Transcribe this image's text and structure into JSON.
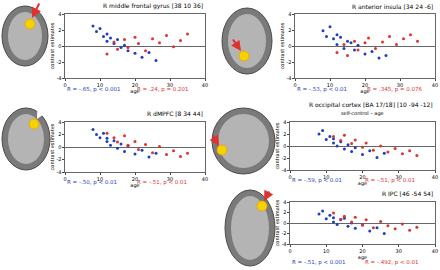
{
  "chart_data": [
    {
      "type": "scatter",
      "title": "R middle frontal gyrus [38 10 36]",
      "xlabel": "age",
      "ylabel": "contrast estimates",
      "xlim": [
        0,
        40
      ],
      "xticks": [
        0,
        10,
        20,
        30,
        40
      ],
      "ylim": [
        -4,
        4
      ],
      "yticks": [
        -4,
        -2,
        0,
        2,
        4
      ],
      "series": [
        {
          "color": "#1f3fbf",
          "x": [
            8,
            9,
            10,
            11,
            12,
            12,
            13,
            14,
            15,
            16,
            17,
            18,
            20,
            22,
            24,
            26
          ],
          "values": [
            2.5,
            1.8,
            2.2,
            1.2,
            1.5,
            0.6,
            1.0,
            0.3,
            0.8,
            -0.2,
            0.1,
            -0.6,
            -0.9,
            -1.4,
            -0.8,
            -1.8
          ]
        },
        {
          "color": "#e0312f",
          "x": [
            12,
            14,
            15,
            17,
            18,
            20,
            21,
            23,
            25,
            27,
            29,
            31,
            33,
            35
          ],
          "values": [
            -1.0,
            0.5,
            -0.4,
            0.8,
            -0.2,
            1.1,
            0.3,
            -0.6,
            0.9,
            0.4,
            1.3,
            -0.1,
            0.7,
            1.5
          ]
        }
      ],
      "annotations": [
        {
          "text": "R = -.65, p < 0.001",
          "color": "#1f3fbf"
        },
        {
          "text": "R = .24, p = 0.201",
          "color": "#e0312f"
        }
      ]
    },
    {
      "type": "scatter",
      "title": "R anterior insula [34 24 -6]",
      "xlabel": "age",
      "ylabel": "contrast estimates",
      "xlim": [
        0,
        40
      ],
      "xticks": [
        0,
        10,
        20,
        30,
        40
      ],
      "ylim": [
        -4,
        4
      ],
      "yticks": [
        -4,
        -2,
        0,
        2,
        4
      ],
      "series": [
        {
          "color": "#1f3fbf",
          "x": [
            8,
            9,
            10,
            11,
            12,
            12,
            13,
            14,
            15,
            16,
            17,
            18,
            20,
            22,
            24,
            26
          ],
          "values": [
            1.9,
            1.2,
            2.4,
            0.9,
            1.4,
            0.2,
            1.1,
            -0.3,
            0.6,
            0.4,
            -0.5,
            0.1,
            -1.0,
            -0.7,
            -1.5,
            -1.2
          ]
        },
        {
          "color": "#e0312f",
          "x": [
            12,
            14,
            15,
            17,
            18,
            20,
            21,
            23,
            25,
            27,
            29,
            31,
            33,
            35
          ],
          "values": [
            -0.8,
            0.2,
            -1.2,
            0.6,
            -0.5,
            0.4,
            1.0,
            -0.3,
            0.5,
            1.2,
            0.2,
            0.9,
            1.4,
            0.6
          ]
        }
      ],
      "annotations": [
        {
          "text": "R = -.53, p < 0.01",
          "color": "#1f3fbf"
        },
        {
          "text": "R = .345, p = 0.076",
          "color": "#e0312f"
        }
      ]
    },
    {
      "type": "scatter",
      "title": "R dMPFC [8 34 44]",
      "xlabel": "age",
      "ylabel": "contrast estimates",
      "xlim": [
        0,
        40
      ],
      "xticks": [
        0,
        10,
        20,
        30,
        40
      ],
      "ylim": [
        -4,
        4
      ],
      "yticks": [
        -4,
        -2,
        0,
        2,
        4
      ],
      "series": [
        {
          "color": "#1f3fbf",
          "x": [
            8,
            9,
            10,
            11,
            12,
            12,
            13,
            14,
            15,
            16,
            17,
            18,
            20,
            22,
            24,
            26
          ],
          "values": [
            2.8,
            2.0,
            1.5,
            2.2,
            0.9,
            1.4,
            0.3,
            1.0,
            -0.2,
            0.5,
            -0.7,
            0.2,
            -1.1,
            -0.5,
            -1.6,
            -1.0
          ]
        },
        {
          "color": "#e0312f",
          "x": [
            12,
            14,
            15,
            17,
            18,
            20,
            21,
            23,
            25,
            27,
            29,
            31,
            33,
            35
          ],
          "values": [
            2.2,
            1.5,
            0.8,
            1.8,
            0.3,
            0.9,
            -0.4,
            0.4,
            -0.9,
            0.1,
            -1.2,
            -0.6,
            -1.5,
            -1.0
          ]
        }
      ],
      "annotations": [
        {
          "text": "R = -.50, p < 0.01",
          "color": "#1f3fbf"
        },
        {
          "text": "R = -.51, p < 0.01",
          "color": "#e0312f"
        }
      ]
    },
    {
      "type": "scatter",
      "title": "R occipital cortex [BA 17/18] [10 -94 -12]",
      "subtitle": "self-control – age",
      "xlabel": "age",
      "ylabel": "contrast estimates",
      "xlim": [
        0,
        40
      ],
      "xticks": [
        0,
        10,
        20,
        30,
        40
      ],
      "ylim": [
        -4,
        4
      ],
      "yticks": [
        -4,
        -2,
        0,
        2,
        4
      ],
      "series": [
        {
          "color": "#1f3fbf",
          "x": [
            8,
            9,
            10,
            11,
            12,
            12,
            13,
            14,
            15,
            16,
            17,
            18,
            20,
            22,
            24,
            26
          ],
          "values": [
            2.0,
            2.6,
            1.1,
            1.6,
            0.5,
            1.2,
            0.0,
            0.7,
            -0.5,
            0.2,
            -0.9,
            -0.3,
            -1.4,
            -0.8,
            -1.9,
            -1.2
          ]
        },
        {
          "color": "#e0312f",
          "x": [
            12,
            14,
            15,
            17,
            18,
            20,
            21,
            23,
            25,
            27,
            29,
            31,
            33,
            35
          ],
          "values": [
            1.6,
            0.9,
            1.8,
            0.4,
            1.0,
            -0.2,
            0.5,
            -0.7,
            0.0,
            -1.0,
            -0.4,
            -1.3,
            -0.8,
            -1.6
          ]
        }
      ],
      "annotations": [
        {
          "text": "R = -.59, p < 0.01",
          "color": "#1f3fbf"
        },
        {
          "text": "R = -.51, p < 0.01",
          "color": "#e0312f"
        }
      ]
    },
    {
      "type": "scatter",
      "title": "R IPC [46 -54 54]",
      "xlabel": "age",
      "ylabel": "contrast estimates",
      "xlim": [
        0,
        40
      ],
      "xticks": [
        0,
        10,
        20,
        30,
        40
      ],
      "ylim": [
        -4,
        4
      ],
      "yticks": [
        -4,
        -2,
        0,
        2,
        4
      ],
      "series": [
        {
          "color": "#1f3fbf",
          "x": [
            8,
            9,
            10,
            11,
            12,
            12,
            13,
            14,
            15,
            16,
            17,
            18,
            20,
            22,
            24,
            26
          ],
          "values": [
            1.7,
            2.3,
            0.8,
            1.5,
            0.2,
            1.0,
            -0.3,
            0.6,
            0.9,
            -0.6,
            0.0,
            -1.0,
            -0.4,
            -1.5,
            -0.9,
            -2.0
          ]
        },
        {
          "color": "#e0312f",
          "x": [
            12,
            14,
            15,
            17,
            18,
            20,
            21,
            23,
            25,
            27,
            29,
            31,
            33,
            35
          ],
          "values": [
            1.9,
            0.7,
            1.3,
            0.2,
            1.1,
            -0.4,
            0.6,
            -0.9,
            0.3,
            -0.5,
            -1.1,
            -0.2,
            -1.4,
            -0.8
          ]
        }
      ],
      "annotations": [
        {
          "text": "R = -.51, p < 0.001",
          "color": "#1f3fbf"
        },
        {
          "text": "R = -.492, p < 0.01",
          "color": "#e0312f"
        }
      ]
    }
  ]
}
